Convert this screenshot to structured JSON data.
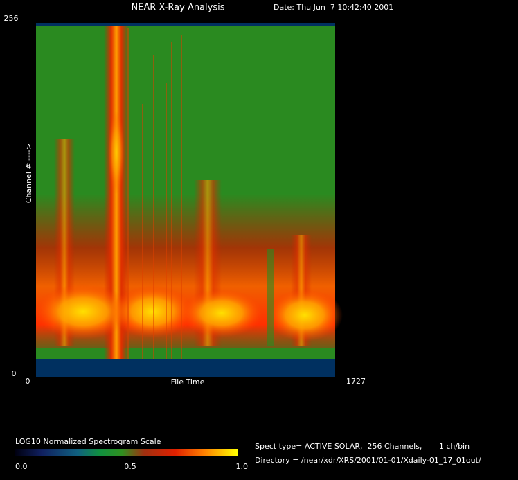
{
  "header": {
    "title": "NEAR X-Ray Analysis",
    "date": "Date: Thu Jun  7 10:42:40 2001"
  },
  "plot": {
    "y_axis_label": "Channel # ---->",
    "y_top": "256",
    "y_bottom": "0",
    "x_left": "0",
    "x_right": "1727",
    "x_axis_label": "File Time"
  },
  "scale": {
    "title": "LOG10 Normalized Spectrogram Scale",
    "labels": [
      "0.0",
      "0.5",
      "1.0"
    ]
  },
  "info": {
    "spect_type": "Spect type= ACTIVE SOLAR,  256 Channels,       1 ch/bin",
    "directory": "Directory = /near/xdr/XRS/2001/01-01/Xdaily-01_17_01out/"
  }
}
